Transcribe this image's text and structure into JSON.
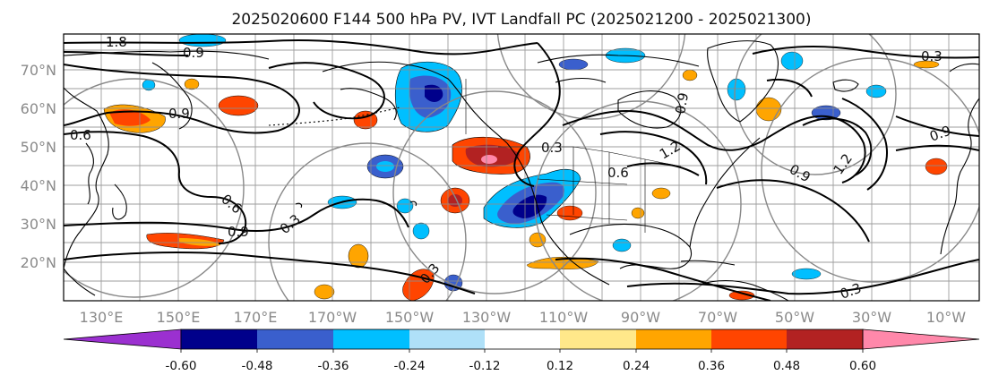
{
  "title": "2025020600 F144 500 hPa PV, IVT Landfall PC (2025021200 - 2025021300)",
  "lat_labels": [
    "70°N",
    "60°N",
    "50°N",
    "40°N",
    "30°N",
    "20°N"
  ],
  "lon_labels": [
    "130°E",
    "150°E",
    "170°E",
    "170°W",
    "150°W",
    "130°W",
    "110°W",
    "90°W",
    "70°W",
    "50°W",
    "30°W",
    "10°W"
  ],
  "contour_labels": [
    "1.8",
    "0.9",
    "0.6",
    "0.6",
    "0.9",
    "0.3",
    "0.3",
    "0.3",
    "0.6",
    "1.2",
    "0.9",
    "1.2",
    "0.9",
    "0.9",
    "0.3",
    "0.3",
    "0.9"
  ],
  "colorbar": {
    "ticks": [
      "-0.60",
      "-0.48",
      "-0.36",
      "-0.24",
      "-0.12",
      "0.12",
      "0.24",
      "0.36",
      "0.48",
      "0.60"
    ],
    "colors": [
      "#9b30d0",
      "#00008b",
      "#3a5fcd",
      "#00bfff",
      "#afe0f8",
      "#ffffff",
      "#ffe88a",
      "#ffa500",
      "#ff4500",
      "#b22222",
      "#ff88aa"
    ]
  },
  "colors": {
    "coast": "#000000",
    "contour": "#000000",
    "grid": "#8c8c8c",
    "circle": "#888888"
  }
}
